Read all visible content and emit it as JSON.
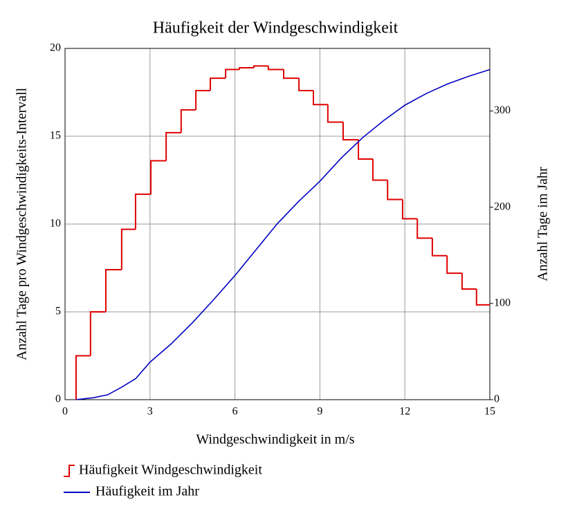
{
  "chart_data": {
    "type": "step-line",
    "title": "Häufigkeit der Windgeschwindigkeit",
    "x_label": "Windgeschwindigkeit in m/s",
    "y_label": "Anzahl Tage pro Windgeschwindigkeits-Intervall",
    "y2_label": "Anzahl Tage im Jahr",
    "xlim": [
      0,
      15
    ],
    "xticks": [
      0,
      3,
      6,
      9,
      12,
      15
    ],
    "ylim": [
      0,
      20
    ],
    "yticks": [
      0,
      5,
      10,
      15,
      20
    ],
    "y2lim": [
      0,
      365
    ],
    "y2ticks": [
      0,
      100,
      200,
      300
    ],
    "grid": true,
    "legend": "bottom",
    "series": [
      {
        "name": "Häufigkeit Windgeschwindigkeit",
        "type": "step",
        "color": "#e00000",
        "x": [
          0.39,
          0.9,
          1.44,
          2.0,
          2.49,
          3.03,
          3.57,
          4.1,
          4.62,
          5.13,
          5.67,
          6.16,
          6.67,
          7.18,
          7.72,
          8.26,
          8.77,
          9.28,
          9.82,
          10.36,
          10.87,
          11.39,
          11.92,
          12.44,
          12.97,
          13.49,
          14.02,
          14.53
        ],
        "values": [
          2.5,
          5.0,
          7.4,
          9.7,
          11.7,
          13.6,
          15.2,
          16.5,
          17.6,
          18.3,
          18.8,
          18.9,
          19.0,
          18.8,
          18.3,
          17.6,
          16.8,
          15.8,
          14.8,
          13.7,
          12.5,
          11.4,
          10.3,
          9.2,
          8.2,
          7.2,
          6.3,
          5.4
        ]
      },
      {
        "name": "Häufigkeit im Jahr",
        "type": "line",
        "color": "#0000c0",
        "axis": "y2",
        "x": [
          0.39,
          1,
          1.5,
          2,
          2.5,
          3,
          3.75,
          4.5,
          5.25,
          6,
          6.75,
          7.5,
          8.25,
          9,
          9.75,
          10.5,
          11.25,
          12,
          12.75,
          13.5,
          14.25,
          15
        ],
        "values": [
          0,
          2,
          5,
          13,
          22,
          39,
          58,
          80,
          104,
          129,
          156,
          183,
          206,
          227,
          251,
          272,
          290,
          306,
          318,
          328,
          336,
          343
        ]
      }
    ]
  }
}
